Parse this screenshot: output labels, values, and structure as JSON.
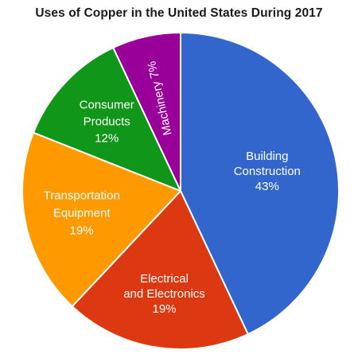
{
  "chart_data": {
    "type": "pie",
    "title": "Uses of Copper in the United States During 2017",
    "slices": [
      {
        "name": "Building Construction",
        "label_lines": [
          "Building",
          "Construction",
          "43%"
        ],
        "value": 43,
        "color": "#3366cc"
      },
      {
        "name": "Electrical and Electronics",
        "label_lines": [
          "Electrical",
          "and Electronics",
          "19%"
        ],
        "value": 19,
        "color": "#dc3912"
      },
      {
        "name": "Transportation Equipment",
        "label_lines": [
          "Transportation",
          "Equipment",
          "19%"
        ],
        "value": 19,
        "color": "#ff9900"
      },
      {
        "name": "Consumer Products",
        "label_lines": [
          "Consumer",
          "Products",
          "12%"
        ],
        "value": 12,
        "color": "#109618"
      },
      {
        "name": "Machinery",
        "label_lines": [
          "Machinery 7%"
        ],
        "value": 7,
        "color": "#990099"
      }
    ],
    "start_angle": "12 o'clock",
    "direction": "clockwise",
    "legend": "none"
  }
}
